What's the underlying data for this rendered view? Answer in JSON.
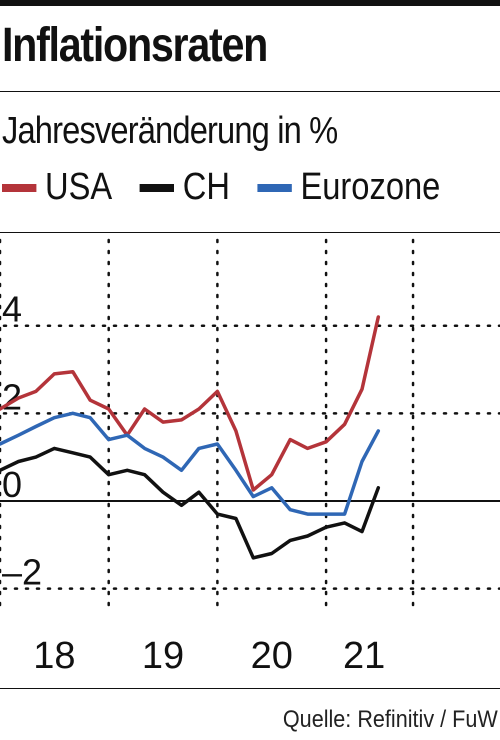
{
  "chart_data": {
    "type": "line",
    "title": "Inflationsraten",
    "subtitle": "Jahresveränderung in %",
    "legend": [
      {
        "label": "USA",
        "color": "#b4343a"
      },
      {
        "label": "CH",
        "color": "#111111"
      },
      {
        "label": "Eurozone",
        "color": "#2f67b5"
      }
    ],
    "yticks": [
      "4",
      "2",
      "0",
      "–2"
    ],
    "ytick_values": [
      4,
      2,
      0,
      -2
    ],
    "xticks": [
      "18",
      "19",
      "20",
      "21"
    ],
    "ylim": [
      -2.9,
      5.5
    ],
    "xlim": [
      2017.0,
      2021.6
    ],
    "series": [
      {
        "name": "USA",
        "color": "#b4343a",
        "points": [
          [
            2017.0,
            2.1
          ],
          [
            2017.17,
            2.35
          ],
          [
            2017.33,
            2.5
          ],
          [
            2017.5,
            2.9
          ],
          [
            2017.67,
            2.95
          ],
          [
            2017.83,
            2.3
          ],
          [
            2018.0,
            2.1
          ],
          [
            2018.17,
            1.5
          ],
          [
            2018.33,
            2.1
          ],
          [
            2018.5,
            1.8
          ],
          [
            2018.67,
            1.85
          ],
          [
            2018.83,
            2.1
          ],
          [
            2019.0,
            2.5
          ],
          [
            2019.17,
            1.6
          ],
          [
            2019.33,
            0.25
          ],
          [
            2019.5,
            0.6
          ],
          [
            2019.67,
            1.4
          ],
          [
            2019.83,
            1.2
          ],
          [
            2020.0,
            1.35
          ],
          [
            2020.17,
            1.75
          ],
          [
            2020.33,
            2.55
          ],
          [
            2020.48,
            4.2
          ]
        ]
      },
      {
        "name": "CH",
        "color": "#111111",
        "points": [
          [
            2017.0,
            0.7
          ],
          [
            2017.17,
            0.9
          ],
          [
            2017.33,
            1.0
          ],
          [
            2017.5,
            1.2
          ],
          [
            2017.67,
            1.1
          ],
          [
            2017.83,
            1.0
          ],
          [
            2018.0,
            0.6
          ],
          [
            2018.17,
            0.7
          ],
          [
            2018.33,
            0.6
          ],
          [
            2018.5,
            0.2
          ],
          [
            2018.67,
            -0.1
          ],
          [
            2018.83,
            0.2
          ],
          [
            2019.0,
            -0.3
          ],
          [
            2019.17,
            -0.4
          ],
          [
            2019.33,
            -1.3
          ],
          [
            2019.5,
            -1.2
          ],
          [
            2019.67,
            -0.9
          ],
          [
            2019.83,
            -0.8
          ],
          [
            2020.0,
            -0.6
          ],
          [
            2020.17,
            -0.5
          ],
          [
            2020.33,
            -0.7
          ],
          [
            2020.48,
            0.3
          ]
        ]
      },
      {
        "name": "Eurozone",
        "color": "#2f67b5",
        "points": [
          [
            2017.0,
            1.3
          ],
          [
            2017.17,
            1.5
          ],
          [
            2017.33,
            1.7
          ],
          [
            2017.5,
            1.9
          ],
          [
            2017.67,
            2.0
          ],
          [
            2017.83,
            1.9
          ],
          [
            2018.0,
            1.4
          ],
          [
            2018.17,
            1.5
          ],
          [
            2018.33,
            1.2
          ],
          [
            2018.5,
            1.0
          ],
          [
            2018.67,
            0.7
          ],
          [
            2018.83,
            1.2
          ],
          [
            2019.0,
            1.3
          ],
          [
            2019.17,
            0.7
          ],
          [
            2019.33,
            0.1
          ],
          [
            2019.5,
            0.3
          ],
          [
            2019.67,
            -0.2
          ],
          [
            2019.83,
            -0.3
          ],
          [
            2020.0,
            -0.3
          ],
          [
            2020.17,
            -0.3
          ],
          [
            2020.33,
            0.9
          ],
          [
            2020.48,
            1.6
          ]
        ]
      }
    ],
    "source": "Quelle: Refinitiv / FuW"
  }
}
